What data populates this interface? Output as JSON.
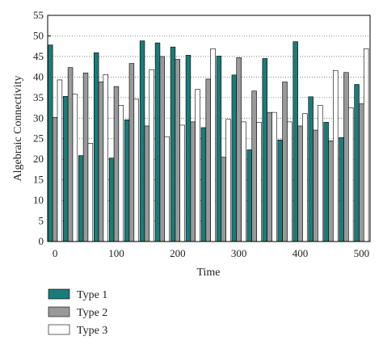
{
  "chart_data": {
    "type": "grouped_bar",
    "x_label": "Time",
    "y_label": "Algebraic Connectivity",
    "x": [
      0,
      25,
      50,
      75,
      100,
      125,
      150,
      175,
      200,
      225,
      250,
      275,
      300,
      325,
      350,
      375,
      400,
      425,
      450,
      475,
      500
    ],
    "series": [
      {
        "name": "Type 1",
        "color": "#1b7b78",
        "values": [
          47.8,
          35.3,
          20.9,
          45.9,
          20.3,
          29.6,
          48.8,
          48.3,
          47.3,
          45.3,
          27.7,
          45.1,
          40.5,
          22.3,
          44.5,
          24.7,
          48.6,
          35.2,
          29.0,
          25.3,
          38.2
        ]
      },
      {
        "name": "Type 2",
        "color": "#999999",
        "values": [
          30.2,
          42.3,
          41.0,
          38.8,
          37.7,
          43.3,
          28.1,
          45.0,
          44.3,
          29.1,
          39.5,
          20.5,
          44.7,
          36.6,
          31.4,
          38.8,
          28.1,
          27.1,
          24.5,
          41.1,
          33.5
        ]
      },
      {
        "name": "Type 3",
        "color": "#ffffff",
        "values": [
          39.3,
          35.8,
          23.9,
          40.6,
          33.1,
          34.6,
          41.8,
          25.5,
          28.3,
          37.0,
          46.9,
          29.7,
          29.1,
          29.0,
          31.4,
          29.1,
          31.1,
          33.1,
          41.6,
          32.5,
          46.9
        ]
      }
    ],
    "xlim": [
      -12,
      514
    ],
    "xticks": [
      0,
      100,
      200,
      300,
      400,
      500
    ],
    "ylim": [
      0,
      55
    ],
    "yticks": [
      0,
      5,
      10,
      15,
      20,
      25,
      30,
      35,
      40,
      45,
      50,
      55
    ],
    "grid": true
  }
}
